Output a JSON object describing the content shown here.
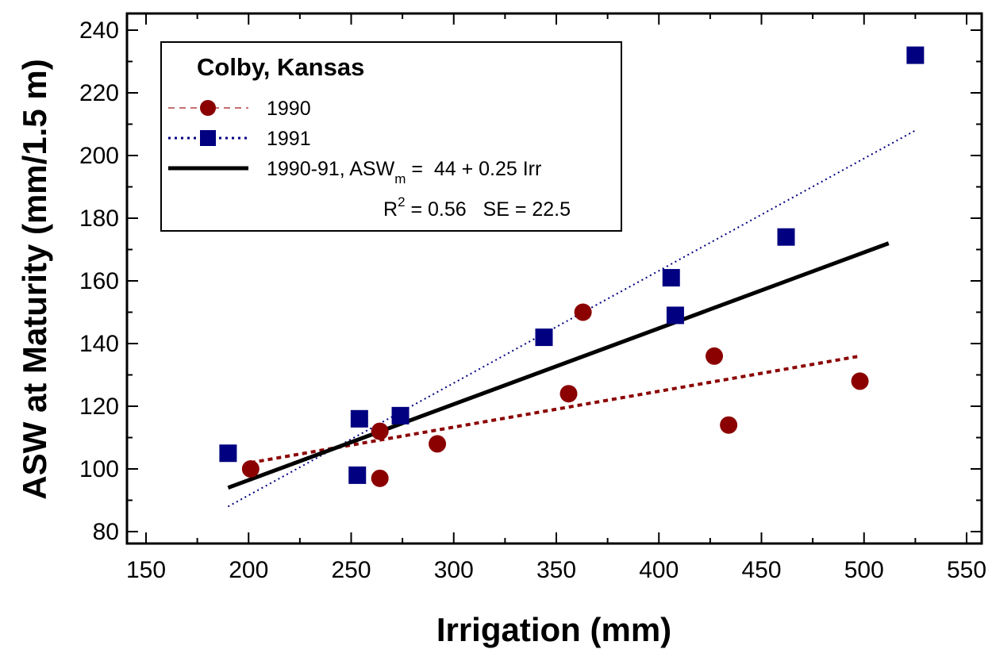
{
  "chart_data": {
    "type": "scatter",
    "title": "",
    "xlabel": "Irrigation (mm)",
    "ylabel": "ASW at Maturity (mm/1.5 m)",
    "xlim": [
      150,
      550
    ],
    "ylim": [
      80,
      240
    ],
    "x_ticks": [
      150,
      200,
      250,
      300,
      350,
      400,
      450,
      500,
      550
    ],
    "y_ticks": [
      80,
      100,
      120,
      140,
      160,
      180,
      200,
      220,
      240
    ],
    "grid": false,
    "legend_position": "top-left",
    "legend_title": "Colby, Kansas",
    "series": [
      {
        "name": "1990",
        "marker": "circle",
        "color": "#8b0000",
        "points": [
          [
            201,
            100
          ],
          [
            264,
            112
          ],
          [
            264,
            97
          ],
          [
            292,
            108
          ],
          [
            356,
            124
          ],
          [
            363,
            150
          ],
          [
            427,
            136
          ],
          [
            434,
            114
          ],
          [
            498,
            128
          ]
        ],
        "trendline": {
          "style": "dashed",
          "from": [
            201,
            102
          ],
          "to": [
            498,
            136
          ]
        }
      },
      {
        "name": "1991",
        "marker": "square",
        "color": "#000080",
        "points": [
          [
            190,
            105
          ],
          [
            253,
            98
          ],
          [
            254,
            116
          ],
          [
            274,
            117
          ],
          [
            344,
            142
          ],
          [
            406,
            161
          ],
          [
            408,
            149
          ],
          [
            462,
            174
          ],
          [
            525,
            232
          ]
        ],
        "trendline": {
          "style": "dotted",
          "from": [
            190,
            88
          ],
          "to": [
            525,
            208
          ]
        }
      },
      {
        "name": "1990-91,  ASW",
        "name_subscript": "m",
        "name_suffix": " =  44 + 0.25 Irr",
        "marker": "none",
        "color": "#000000",
        "trendline": {
          "style": "solid",
          "from": [
            190,
            94
          ],
          "to": [
            512,
            172
          ]
        }
      }
    ],
    "annotation": {
      "r2_label": "R",
      "r2_sup": "2",
      "r2_rest": " = 0.56   SE = 22.5"
    }
  }
}
